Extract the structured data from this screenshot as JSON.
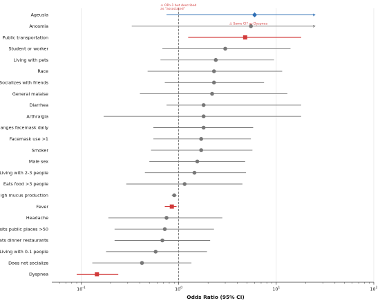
{
  "colors": {
    "default": "#777777",
    "highlight_blue": "#2f6fb5",
    "highlight_red": "#d23b3b",
    "reference_line": "#555555",
    "grid": "#e2e2e2",
    "annotation": "#d23b3b"
  },
  "chart_data": {
    "type": "forest",
    "xscale": "log",
    "xlim": [
      0.05,
      100
    ],
    "xticks": [
      {
        "value": 0.1,
        "base": "10",
        "exp": "-1"
      },
      {
        "value": 1,
        "base": "10",
        "exp": "0"
      },
      {
        "value": 10,
        "base": "10",
        "exp": "1"
      },
      {
        "value": 100,
        "base": "10",
        "exp": "2"
      }
    ],
    "xlabel": "Odds Ratio (95% CI)",
    "reference_value": 1,
    "grid": true,
    "rows": [
      {
        "label": "Ageusia",
        "or": 6.0,
        "lo": 0.75,
        "hi": 25.0,
        "style": "blue",
        "marker": "diamond",
        "arrow_hi": true
      },
      {
        "label": "Anosmia",
        "or": 5.5,
        "lo": 0.33,
        "hi": 25.0,
        "style": "default",
        "marker": "circle",
        "arrow_hi": true
      },
      {
        "label": "Public transportation",
        "or": 4.8,
        "lo": 1.25,
        "hi": 18.0,
        "style": "red",
        "marker": "square",
        "arrow_hi": false
      },
      {
        "label": "Student or worker",
        "or": 3.0,
        "lo": 0.68,
        "hi": 14.0,
        "style": "default",
        "marker": "circle",
        "arrow_hi": false
      },
      {
        "label": "Living with pets",
        "or": 2.4,
        "lo": 0.65,
        "hi": 9.5,
        "style": "default",
        "marker": "circle",
        "arrow_hi": false
      },
      {
        "label": "Race",
        "or": 2.3,
        "lo": 0.48,
        "hi": 11.5,
        "style": "default",
        "marker": "circle",
        "arrow_hi": false
      },
      {
        "label": "Socializes with friends",
        "or": 2.3,
        "lo": 0.72,
        "hi": 7.5,
        "style": "default",
        "marker": "circle",
        "arrow_hi": false
      },
      {
        "label": "General malaise",
        "or": 2.2,
        "lo": 0.4,
        "hi": 13.0,
        "style": "default",
        "marker": "circle",
        "arrow_hi": false
      },
      {
        "label": "Diarrhea",
        "or": 1.8,
        "lo": 0.75,
        "hi": 18.0,
        "style": "default",
        "marker": "circle",
        "arrow_hi": false
      },
      {
        "label": "Arthralgia",
        "or": 1.8,
        "lo": 0.17,
        "hi": 18.0,
        "style": "default",
        "marker": "circle",
        "arrow_hi": false
      },
      {
        "label": "Changes facemask daily",
        "or": 1.8,
        "lo": 0.55,
        "hi": 5.8,
        "style": "default",
        "marker": "circle",
        "arrow_hi": false
      },
      {
        "label": "Facemask use >1",
        "or": 1.7,
        "lo": 0.55,
        "hi": 5.5,
        "style": "default",
        "marker": "circle",
        "arrow_hi": false
      },
      {
        "label": "Smoker",
        "or": 1.7,
        "lo": 0.52,
        "hi": 5.7,
        "style": "default",
        "marker": "circle",
        "arrow_hi": false
      },
      {
        "label": "Male sex",
        "or": 1.55,
        "lo": 0.5,
        "hi": 4.8,
        "style": "default",
        "marker": "circle",
        "arrow_hi": false
      },
      {
        "label": "Living with 2-3 people",
        "or": 1.45,
        "lo": 0.45,
        "hi": 4.9,
        "style": "default",
        "marker": "circle",
        "arrow_hi": false
      },
      {
        "label": "Eats food >3 people",
        "or": 1.15,
        "lo": 0.29,
        "hi": 4.5,
        "style": "default",
        "marker": "circle",
        "arrow_hi": false
      },
      {
        "label": "High mucus production",
        "or": 0.9,
        "lo": 0.85,
        "hi": 0.95,
        "style": "default",
        "marker": "circle",
        "arrow_hi": false
      },
      {
        "label": "Fever",
        "or": 0.85,
        "lo": 0.72,
        "hi": 0.95,
        "style": "red",
        "marker": "square",
        "arrow_hi": false
      },
      {
        "label": "Headache",
        "or": 0.75,
        "lo": 0.19,
        "hi": 2.8,
        "style": "default",
        "marker": "circle",
        "arrow_hi": false
      },
      {
        "label": "Visits public places >50",
        "or": 0.72,
        "lo": 0.22,
        "hi": 2.3,
        "style": "default",
        "marker": "circle",
        "arrow_hi": false
      },
      {
        "label": "Eats dinner restaurants",
        "or": 0.68,
        "lo": 0.22,
        "hi": 2.1,
        "style": "default",
        "marker": "circle",
        "arrow_hi": false
      },
      {
        "label": "Living with 0-1 people",
        "or": 0.58,
        "lo": 0.18,
        "hi": 1.95,
        "style": "default",
        "marker": "circle",
        "arrow_hi": false
      },
      {
        "label": "Does not socialize",
        "or": 0.42,
        "lo": 0.13,
        "hi": 1.35,
        "style": "default",
        "marker": "circle",
        "arrow_hi": false
      },
      {
        "label": "Dyspnea",
        "or": 0.145,
        "lo": 0.09,
        "hi": 0.24,
        "style": "red",
        "marker": "square",
        "arrow_hi": false
      }
    ],
    "annotations": [
      {
        "line1": "⚠ OR>1 but described",
        "line2": "as \"associated\"",
        "x": 0.65,
        "row": -1
      },
      {
        "line1": "⚠ Same CI? as Dyspnea",
        "line2": "",
        "x": 3.3,
        "row": 1
      }
    ]
  }
}
